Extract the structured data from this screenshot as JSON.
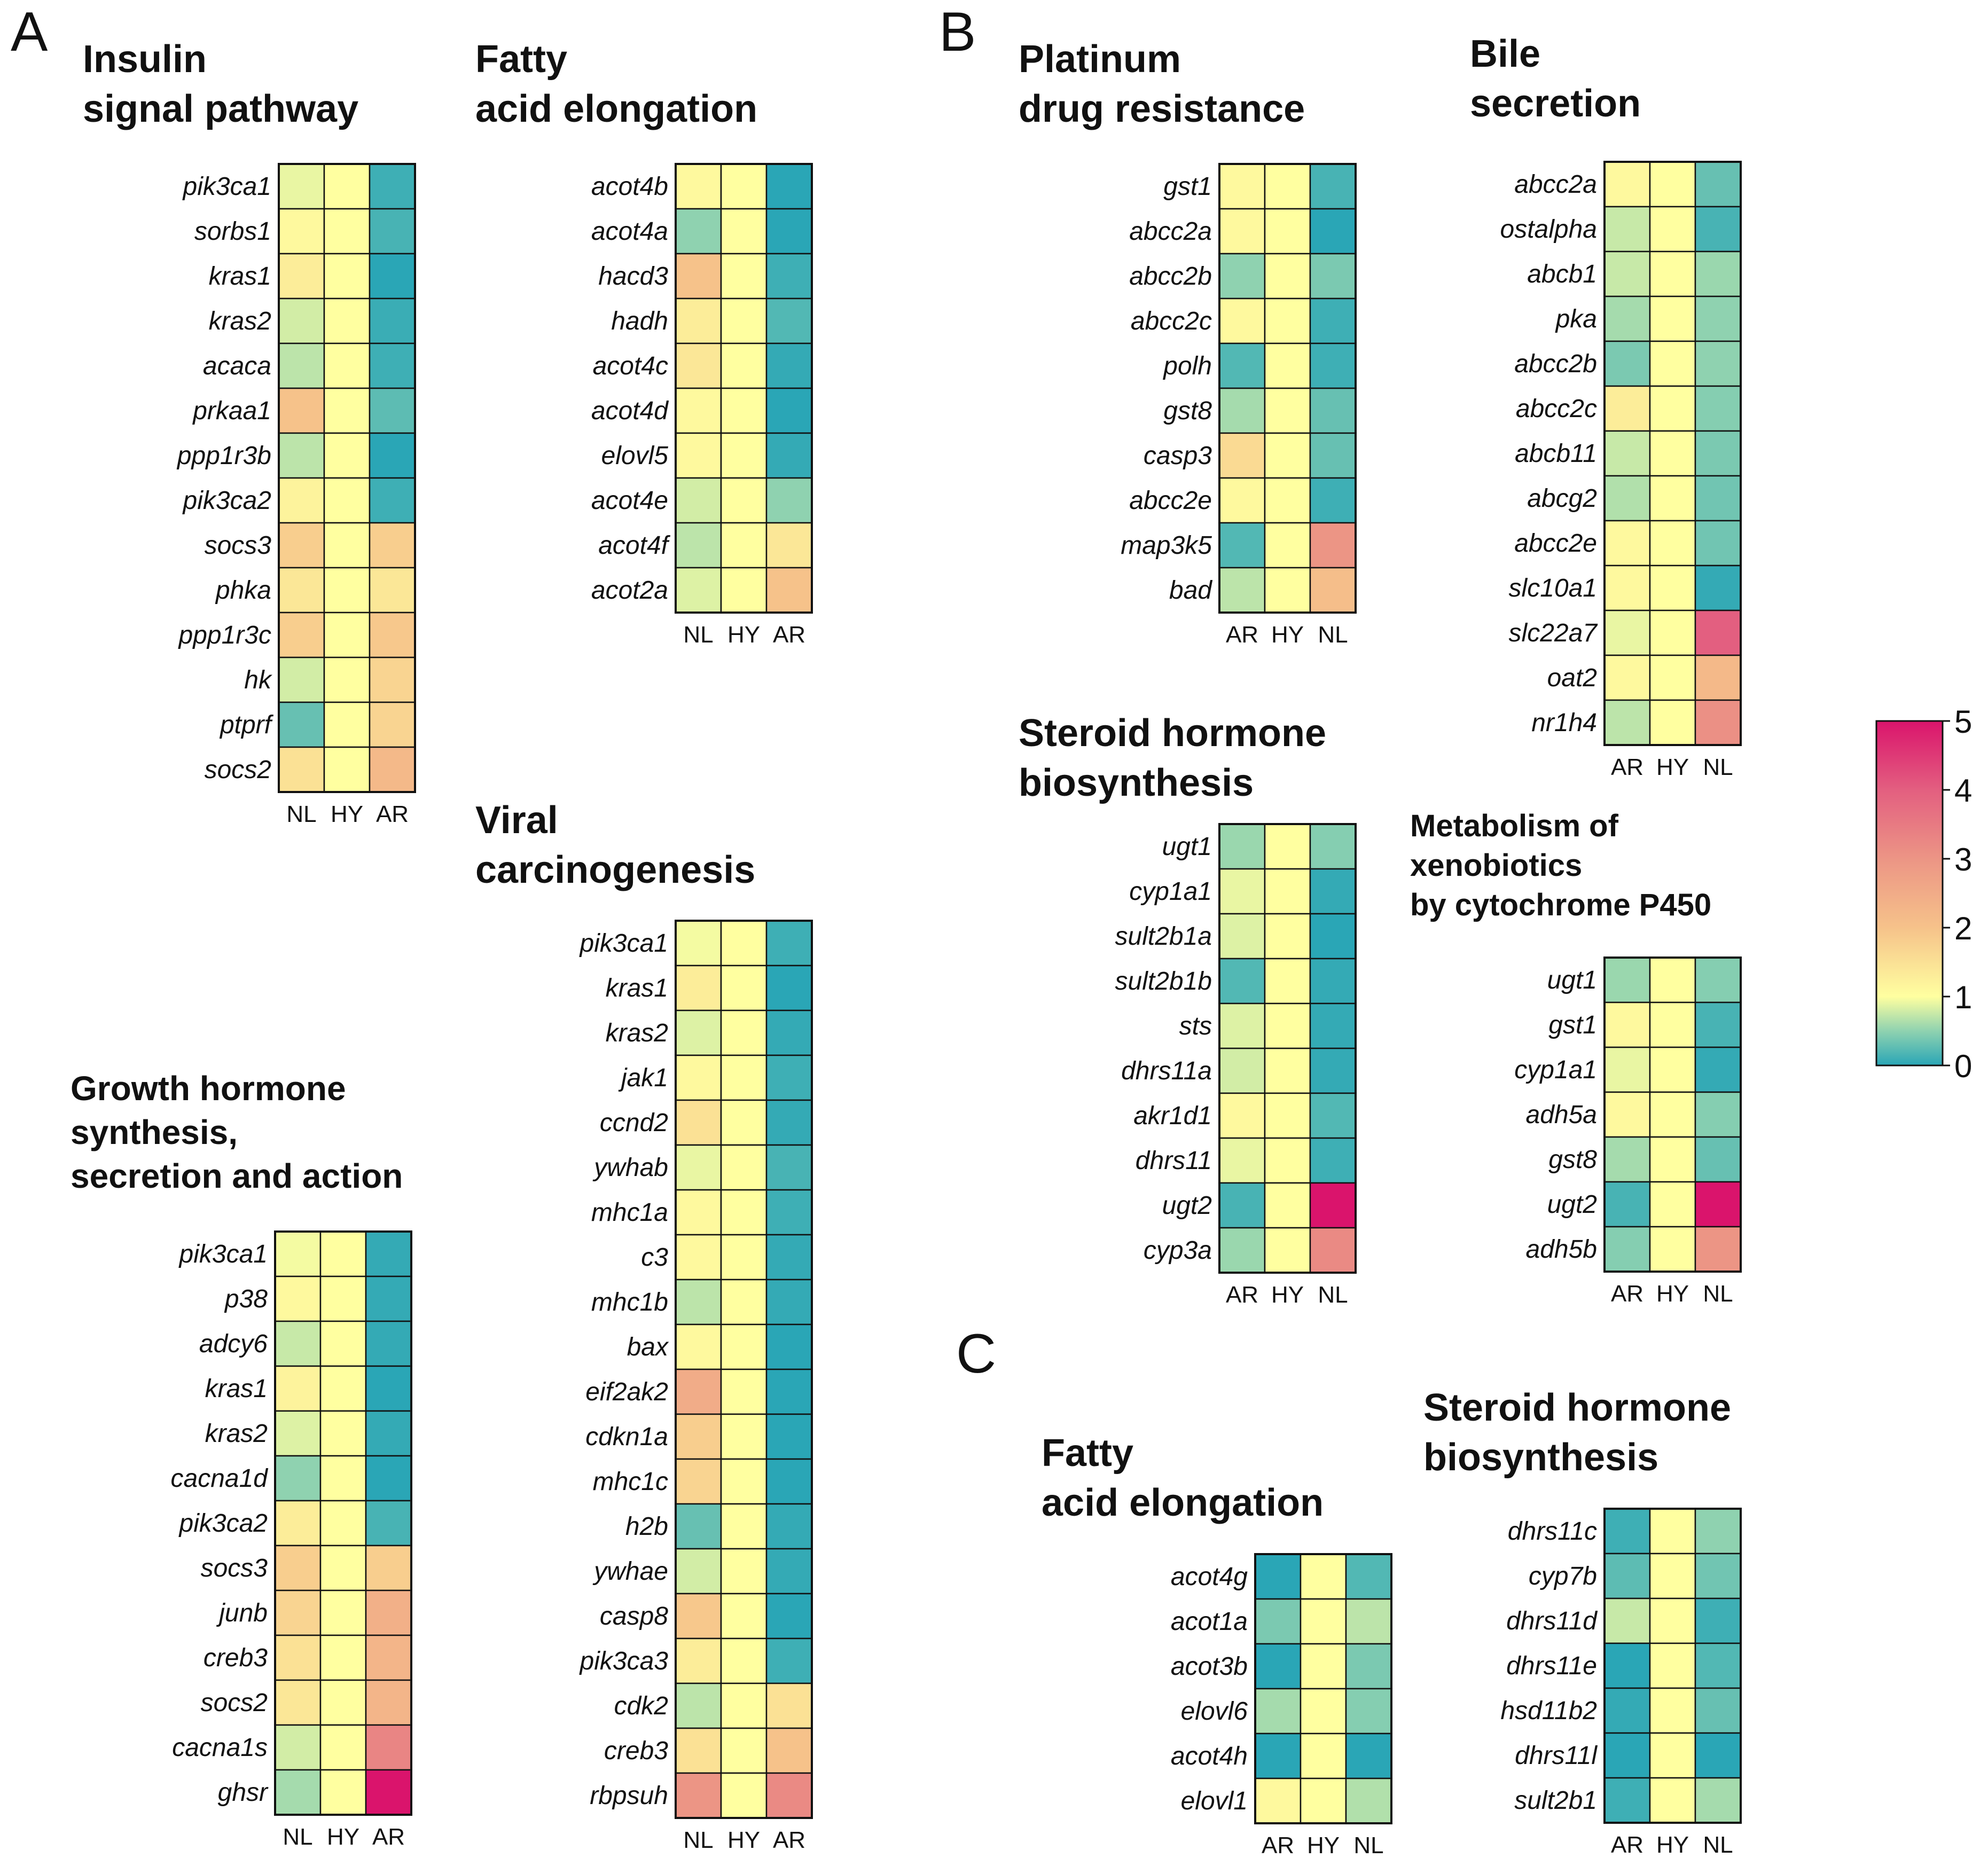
{
  "panels": [
    "A",
    "B",
    "C"
  ],
  "colorbar": {
    "ticks": [
      "0",
      "1",
      "2",
      "3",
      "4",
      "5"
    ],
    "min": 0,
    "max": 5
  },
  "chart_data": [
    {
      "type": "heatmap",
      "panel": "A",
      "title": [
        "Insulin",
        "signal pathway"
      ],
      "columns": [
        "NL",
        "HY",
        "AR"
      ],
      "rows": [
        "pik3ca1",
        "sorbs1",
        "kras1",
        "kras2",
        "acaca",
        "prkaa1",
        "ppp1r3b",
        "pik3ca2",
        "socs3",
        "phka",
        "ppp1r3c",
        "hk",
        "ptprf",
        "socs2"
      ],
      "values": [
        [
          0.9,
          1,
          0.1
        ],
        [
          1.1,
          1,
          0.15
        ],
        [
          1.3,
          1,
          0.0
        ],
        [
          0.8,
          1,
          0.08
        ],
        [
          0.7,
          1,
          0.1
        ],
        [
          2.0,
          1,
          0.25
        ],
        [
          0.7,
          1,
          0.0
        ],
        [
          1.2,
          1,
          0.1
        ],
        [
          1.8,
          1,
          1.8
        ],
        [
          1.4,
          1,
          1.4
        ],
        [
          1.8,
          1,
          1.9
        ],
        [
          0.8,
          1,
          1.7
        ],
        [
          0.3,
          1,
          1.7
        ],
        [
          1.5,
          1,
          2.2
        ]
      ]
    },
    {
      "type": "heatmap",
      "panel": "A",
      "title": [
        "Fatty",
        "acid elongation"
      ],
      "columns": [
        "NL",
        "HY",
        "AR"
      ],
      "rows": [
        "acot4b",
        "acot4a",
        "hacd3",
        "hadh",
        "acot4c",
        "acot4d",
        "elovl5",
        "acot4e",
        "acot4f",
        "acot2a"
      ],
      "values": [
        [
          1.1,
          1,
          0.0
        ],
        [
          0.5,
          1,
          0.0
        ],
        [
          2.0,
          1,
          0.1
        ],
        [
          1.3,
          1,
          0.2
        ],
        [
          1.4,
          1,
          0.05
        ],
        [
          1.1,
          1,
          0.0
        ],
        [
          1.1,
          1,
          0.05
        ],
        [
          0.8,
          1,
          0.5
        ],
        [
          0.7,
          1,
          1.4
        ],
        [
          0.85,
          1,
          2.0
        ]
      ]
    },
    {
      "type": "heatmap",
      "panel": "A",
      "title": [
        "Growth hormone",
        "synthesis,",
        "secretion and action"
      ],
      "columns": [
        "NL",
        "HY",
        "AR"
      ],
      "rows": [
        "pik3ca1",
        "p38",
        "adcy6",
        "kras1",
        "kras2",
        "cacna1d",
        "pik3ca2",
        "socs3",
        "junb",
        "creb3",
        "socs2",
        "cacna1s",
        "ghsr"
      ],
      "values": [
        [
          0.95,
          1,
          0.05
        ],
        [
          1.1,
          1,
          0.05
        ],
        [
          0.75,
          1,
          0.05
        ],
        [
          1.2,
          1,
          0.0
        ],
        [
          0.85,
          1,
          0.05
        ],
        [
          0.5,
          1,
          0.0
        ],
        [
          1.3,
          1,
          0.15
        ],
        [
          1.8,
          1,
          1.8
        ],
        [
          1.7,
          1,
          2.4
        ],
        [
          1.5,
          1,
          2.3
        ],
        [
          1.4,
          1,
          2.3
        ],
        [
          0.8,
          1,
          3.3
        ],
        [
          0.6,
          1,
          5.0
        ]
      ]
    },
    {
      "type": "heatmap",
      "panel": "A",
      "title": [
        "Viral",
        "carcinogenesis"
      ],
      "columns": [
        "NL",
        "HY",
        "AR"
      ],
      "rows": [
        "pik3ca1",
        "kras1",
        "kras2",
        "jak1",
        "ccnd2",
        "ywhab",
        "mhc1a",
        "c3",
        "mhc1b",
        "bax",
        "eif2ak2",
        "cdkn1a",
        "mhc1c",
        "h2b",
        "ywhae",
        "casp8",
        "pik3ca3",
        "cdk2",
        "creb3",
        "rbpsuh"
      ],
      "values": [
        [
          0.95,
          1,
          0.1
        ],
        [
          1.3,
          1,
          0.0
        ],
        [
          0.85,
          1,
          0.05
        ],
        [
          1.1,
          1,
          0.1
        ],
        [
          1.5,
          1,
          0.05
        ],
        [
          0.9,
          1,
          0.15
        ],
        [
          1.1,
          1,
          0.1
        ],
        [
          1.1,
          1,
          0.05
        ],
        [
          0.7,
          1,
          0.05
        ],
        [
          1.1,
          1,
          0.0
        ],
        [
          2.5,
          1,
          0.0
        ],
        [
          1.8,
          1,
          0.0
        ],
        [
          1.7,
          1,
          0.0
        ],
        [
          0.3,
          1,
          0.05
        ],
        [
          0.8,
          1,
          0.05
        ],
        [
          1.9,
          1,
          0.0
        ],
        [
          1.3,
          1,
          0.1
        ],
        [
          0.7,
          1,
          1.5
        ],
        [
          1.5,
          1,
          2.0
        ],
        [
          3.0,
          1,
          3.2
        ]
      ]
    },
    {
      "type": "heatmap",
      "panel": "B",
      "title": [
        "Platinum",
        "drug resistance"
      ],
      "columns": [
        "AR",
        "HY",
        "NL"
      ],
      "rows": [
        "gst1",
        "abcc2a",
        "abcc2b",
        "abcc2c",
        "polh",
        "gst8",
        "casp3",
        "abcc2e",
        "map3k5",
        "bad"
      ],
      "values": [
        [
          1.1,
          1,
          0.15
        ],
        [
          1.1,
          1,
          0.0
        ],
        [
          0.5,
          1,
          0.4
        ],
        [
          1.1,
          1,
          0.1
        ],
        [
          0.2,
          1,
          0.1
        ],
        [
          0.6,
          1,
          0.3
        ],
        [
          1.6,
          1,
          0.3
        ],
        [
          1.1,
          1,
          0.1
        ],
        [
          0.2,
          1,
          3.0
        ],
        [
          0.7,
          1,
          2.1
        ]
      ]
    },
    {
      "type": "heatmap",
      "panel": "B",
      "title": [
        "Bile",
        "secretion"
      ],
      "columns": [
        "AR",
        "HY",
        "NL"
      ],
      "rows": [
        "abcc2a",
        "ostalpha",
        "abcb1",
        "pka",
        "abcc2b",
        "abcc2c",
        "abcb11",
        "abcg2",
        "abcc2e",
        "slc10a1",
        "slc22a7",
        "oat2",
        "nr1h4"
      ],
      "values": [
        [
          1.1,
          1,
          0.3
        ],
        [
          0.75,
          1,
          0.15
        ],
        [
          0.75,
          1,
          0.55
        ],
        [
          0.6,
          1,
          0.5
        ],
        [
          0.4,
          1,
          0.5
        ],
        [
          1.3,
          1,
          0.45
        ],
        [
          0.75,
          1,
          0.4
        ],
        [
          0.65,
          1,
          0.35
        ],
        [
          1.1,
          1,
          0.35
        ],
        [
          1.1,
          1,
          0.05
        ],
        [
          0.9,
          1,
          4.0
        ],
        [
          1.1,
          1,
          2.2
        ],
        [
          0.7,
          1,
          3.1
        ]
      ]
    },
    {
      "type": "heatmap",
      "panel": "B",
      "title": [
        "Steroid hormone",
        "biosynthesis"
      ],
      "columns": [
        "AR",
        "HY",
        "NL"
      ],
      "rows": [
        "ugt1",
        "cyp1a1",
        "sult2b1a",
        "sult2b1b",
        "sts",
        "dhrs11a",
        "akr1d1",
        "dhrs11",
        "ugt2",
        "cyp3a"
      ],
      "values": [
        [
          0.55,
          1,
          0.45
        ],
        [
          0.9,
          1,
          0.05
        ],
        [
          0.85,
          1,
          0.0
        ],
        [
          0.2,
          1,
          0.05
        ],
        [
          0.85,
          1,
          0.05
        ],
        [
          0.8,
          1,
          0.05
        ],
        [
          1.1,
          1,
          0.2
        ],
        [
          0.9,
          1,
          0.1
        ],
        [
          0.15,
          1,
          5.0
        ],
        [
          0.55,
          1,
          3.2
        ]
      ]
    },
    {
      "type": "heatmap",
      "panel": "B",
      "title": [
        "Metabolism of",
        "xenobiotics",
        "by cytochrome P450"
      ],
      "columns": [
        "AR",
        "HY",
        "NL"
      ],
      "rows": [
        "ugt1",
        "gst1",
        "cyp1a1",
        "adh5a",
        "gst8",
        "ugt2",
        "adh5b"
      ],
      "values": [
        [
          0.55,
          1,
          0.45
        ],
        [
          1.1,
          1,
          0.15
        ],
        [
          0.9,
          1,
          0.05
        ],
        [
          1.1,
          1,
          0.45
        ],
        [
          0.6,
          1,
          0.3
        ],
        [
          0.15,
          1,
          5.0
        ],
        [
          0.45,
          1,
          3.0
        ]
      ]
    },
    {
      "type": "heatmap",
      "panel": "C",
      "title": [
        "Fatty",
        "acid elongation"
      ],
      "columns": [
        "AR",
        "HY",
        "NL"
      ],
      "rows": [
        "acot4g",
        "acot1a",
        "acot3b",
        "elovl6",
        "acot4h",
        "elovl1"
      ],
      "values": [
        [
          0.0,
          1,
          0.2
        ],
        [
          0.4,
          1,
          0.7
        ],
        [
          0.0,
          1,
          0.4
        ],
        [
          0.6,
          1,
          0.45
        ],
        [
          0.0,
          1,
          0.0
        ],
        [
          1.1,
          1,
          0.65
        ]
      ]
    },
    {
      "type": "heatmap",
      "panel": "C",
      "title": [
        "Steroid hormone",
        "biosynthesis"
      ],
      "columns": [
        "AR",
        "HY",
        "NL"
      ],
      "rows": [
        "dhrs11c",
        "cyp7b",
        "dhrs11d",
        "dhrs11e",
        "hsd11b2",
        "dhrs11l",
        "sult2b1"
      ],
      "values": [
        [
          0.1,
          1,
          0.5
        ],
        [
          0.25,
          1,
          0.35
        ],
        [
          0.75,
          1,
          0.1
        ],
        [
          0.0,
          1,
          0.2
        ],
        [
          0.05,
          1,
          0.3
        ],
        [
          0.0,
          1,
          0.0
        ],
        [
          0.1,
          1,
          0.6
        ]
      ]
    }
  ]
}
